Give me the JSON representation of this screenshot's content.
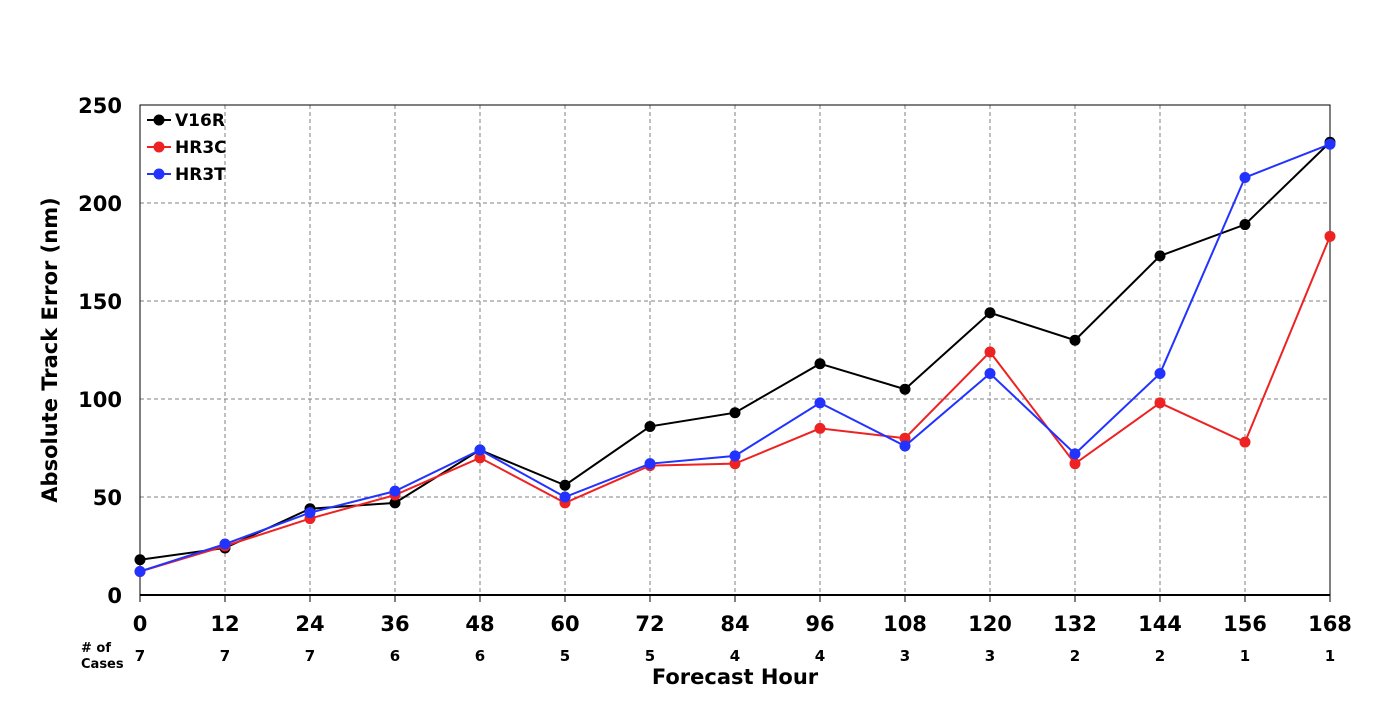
{
  "chart_data": {
    "type": "line",
    "title": "",
    "xlabel": "Forecast Hour",
    "ylabel": "Absolute Track Error (nm)",
    "x": [
      0,
      12,
      24,
      36,
      48,
      60,
      72,
      84,
      96,
      108,
      120,
      132,
      144,
      156,
      168
    ],
    "xlim": [
      0,
      168
    ],
    "ylim": [
      0,
      250
    ],
    "yticks": [
      0,
      50,
      100,
      150,
      200,
      250
    ],
    "grid": true,
    "legend_position": "top-left",
    "series": [
      {
        "name": "V16R",
        "color": "#000000",
        "values": [
          18,
          24,
          44,
          47,
          74,
          56,
          86,
          93,
          118,
          105,
          144,
          130,
          173,
          189,
          231
        ]
      },
      {
        "name": "HR3C",
        "color": "#ee2222",
        "values": [
          12,
          25,
          39,
          51,
          70,
          47,
          66,
          67,
          85,
          80,
          124,
          67,
          98,
          78,
          183
        ]
      },
      {
        "name": "HR3T",
        "color": "#2233ff",
        "values": [
          12,
          26,
          42,
          53,
          74,
          50,
          67,
          71,
          98,
          76,
          113,
          72,
          113,
          213,
          230
        ]
      }
    ],
    "cases_label_line1": "# of",
    "cases_label_line2": "Cases",
    "cases": [
      7,
      7,
      7,
      6,
      6,
      5,
      5,
      4,
      4,
      3,
      3,
      2,
      2,
      1,
      1
    ]
  }
}
